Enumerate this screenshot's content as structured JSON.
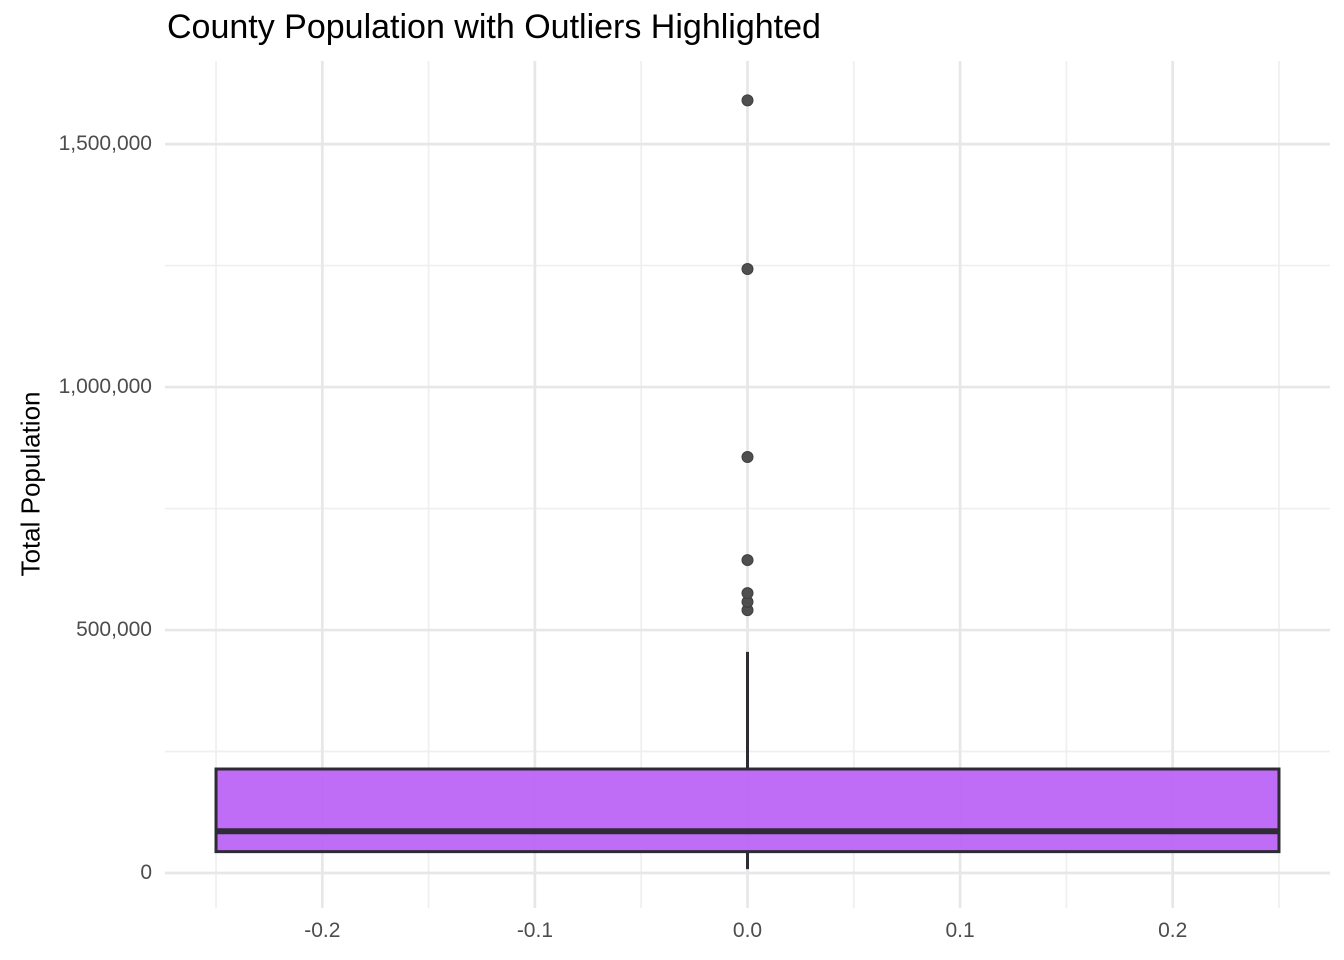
{
  "chart_data": {
    "type": "boxplot",
    "title": "County Population with Outliers Highlighted",
    "xlabel": "",
    "ylabel": "Total Population",
    "grid": true,
    "legend": false,
    "x_axis": {
      "lim": [
        -0.274,
        0.274
      ],
      "major_ticks": [
        -0.2,
        -0.1,
        0.0,
        0.1,
        0.2
      ],
      "tick_labels": [
        "-0.2",
        "-0.1",
        "0.0",
        "0.1",
        "0.2"
      ],
      "minor_ticks": [
        -0.25,
        -0.15,
        -0.05,
        0.05,
        0.15,
        0.25
      ]
    },
    "y_axis": {
      "lim": [
        -72000,
        1671000
      ],
      "major_ticks": [
        0,
        500000,
        1000000,
        1500000
      ],
      "tick_labels": [
        "0",
        "500,000",
        "1,000,000",
        "1,500,000"
      ],
      "minor_ticks": [
        250000,
        750000,
        1250000
      ]
    },
    "series": [
      {
        "name": "county-population-box",
        "x": 0,
        "box_half_width": 0.25,
        "q1": 44000,
        "median": 86000,
        "q3": 214000,
        "whisker_low": 8000,
        "whisker_high": 455000,
        "outliers": [
          541000,
          558000,
          576000,
          644000,
          856000,
          1243000,
          1590000
        ]
      }
    ],
    "colors": {
      "background": "#FFFFFF",
      "grid_major": "#E7E7E7",
      "grid_minor": "#EFEFEF",
      "box_fill": "#BC64F5",
      "box_border": "#2F2B35",
      "median_line": "#2F2B35",
      "whisker": "#2F2B35",
      "outlier_fill": "#4F4F4F",
      "outlier_stroke": "#3F3F3F",
      "tick_label": "#4D4D4D",
      "title_text": "#000000",
      "axis_title_text": "#000000"
    }
  }
}
